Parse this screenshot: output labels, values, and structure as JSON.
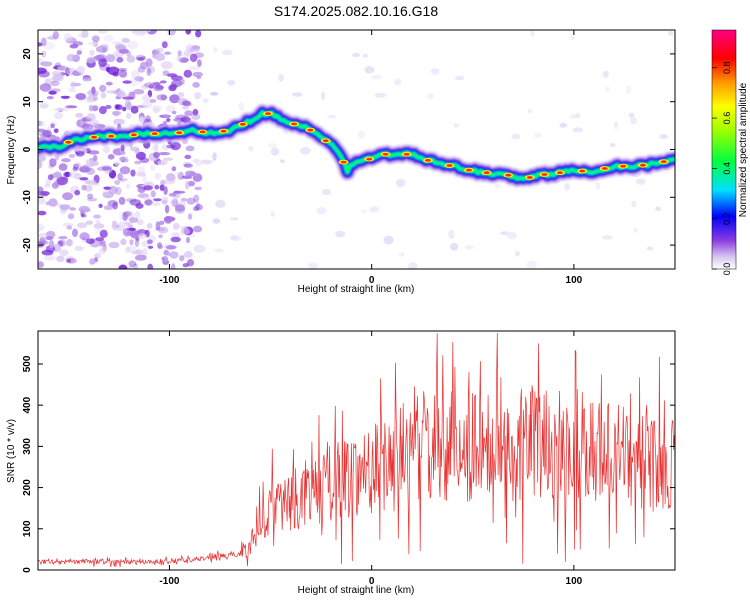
{
  "figure": {
    "title": "S174.2025.082.10.16.G18"
  },
  "chart_data": [
    {
      "type": "heatmap",
      "xlabel": "Height of straight line (km)",
      "ylabel": "Frequency (Hz)",
      "xlim": [
        -165,
        150
      ],
      "ylim": [
        -25,
        25
      ],
      "xticks": [
        -100,
        0,
        100
      ],
      "yticks": [
        -20,
        -10,
        0,
        10,
        20
      ],
      "ridge": {
        "x": [
          -165,
          -155,
          -150,
          -145,
          -140,
          -120,
          -100,
          -95,
          -90,
          -80,
          -70,
          -65,
          -60,
          -55,
          -50,
          -45,
          -40,
          -35,
          -30,
          -25,
          -20,
          -15,
          -12,
          -10,
          -5,
          0,
          5,
          10,
          15,
          20,
          25,
          30,
          35,
          40,
          45,
          50,
          60,
          70,
          75,
          80,
          90,
          100,
          110,
          120,
          130,
          140,
          150
        ],
        "y": [
          0.5,
          0.5,
          1.5,
          2.0,
          2.5,
          3.0,
          3.5,
          3.5,
          4.0,
          3.5,
          4.0,
          5.0,
          6.0,
          7.5,
          7.5,
          6.5,
          5.5,
          5.0,
          4.0,
          2.5,
          1.0,
          -1.5,
          -4.5,
          -3.0,
          -2.0,
          -2.0,
          -1.0,
          -1.0,
          -1.0,
          -1.0,
          -2.0,
          -2.5,
          -3.0,
          -3.5,
          -4.0,
          -4.5,
          -5.0,
          -5.5,
          -6.5,
          -5.5,
          -5.0,
          -4.5,
          -4.5,
          -3.5,
          -3.5,
          -3.0,
          -2.0
        ]
      },
      "colorbar": {
        "label": "Normalized spectral amplitude",
        "range": [
          0,
          0.95
        ],
        "ticks": [
          "0.0",
          "0.2",
          "0.4",
          "0.6",
          "0.8"
        ]
      }
    },
    {
      "type": "line",
      "xlabel": "Height of straight line (km)",
      "ylabel": "SNR (10 * v/v)",
      "xlim": [
        -165,
        150
      ],
      "ylim": [
        0,
        580
      ],
      "xticks": [
        -100,
        0,
        100
      ],
      "yticks": [
        0,
        100,
        200,
        300,
        400,
        500
      ],
      "series": [
        {
          "color": "#e83030",
          "x": [
            -165,
            -150,
            -130,
            -110,
            -90,
            -80,
            -75,
            -70,
            -65,
            -60,
            -55,
            -50,
            -45,
            -40,
            -35,
            -30,
            -25,
            -20,
            -15,
            -10,
            -5,
            0,
            5,
            10,
            15,
            20,
            25,
            30,
            35,
            40,
            50,
            60,
            70,
            80,
            90,
            100,
            110,
            120,
            130,
            140,
            150
          ],
          "y": [
            20,
            20,
            20,
            20,
            25,
            30,
            35,
            35,
            40,
            60,
            110,
            150,
            160,
            170,
            180,
            190,
            200,
            210,
            220,
            230,
            240,
            250,
            260,
            270,
            280,
            290,
            300,
            300,
            305,
            300,
            300,
            300,
            300,
            310,
            300,
            300,
            290,
            280,
            270,
            260,
            270
          ]
        }
      ]
    }
  ]
}
